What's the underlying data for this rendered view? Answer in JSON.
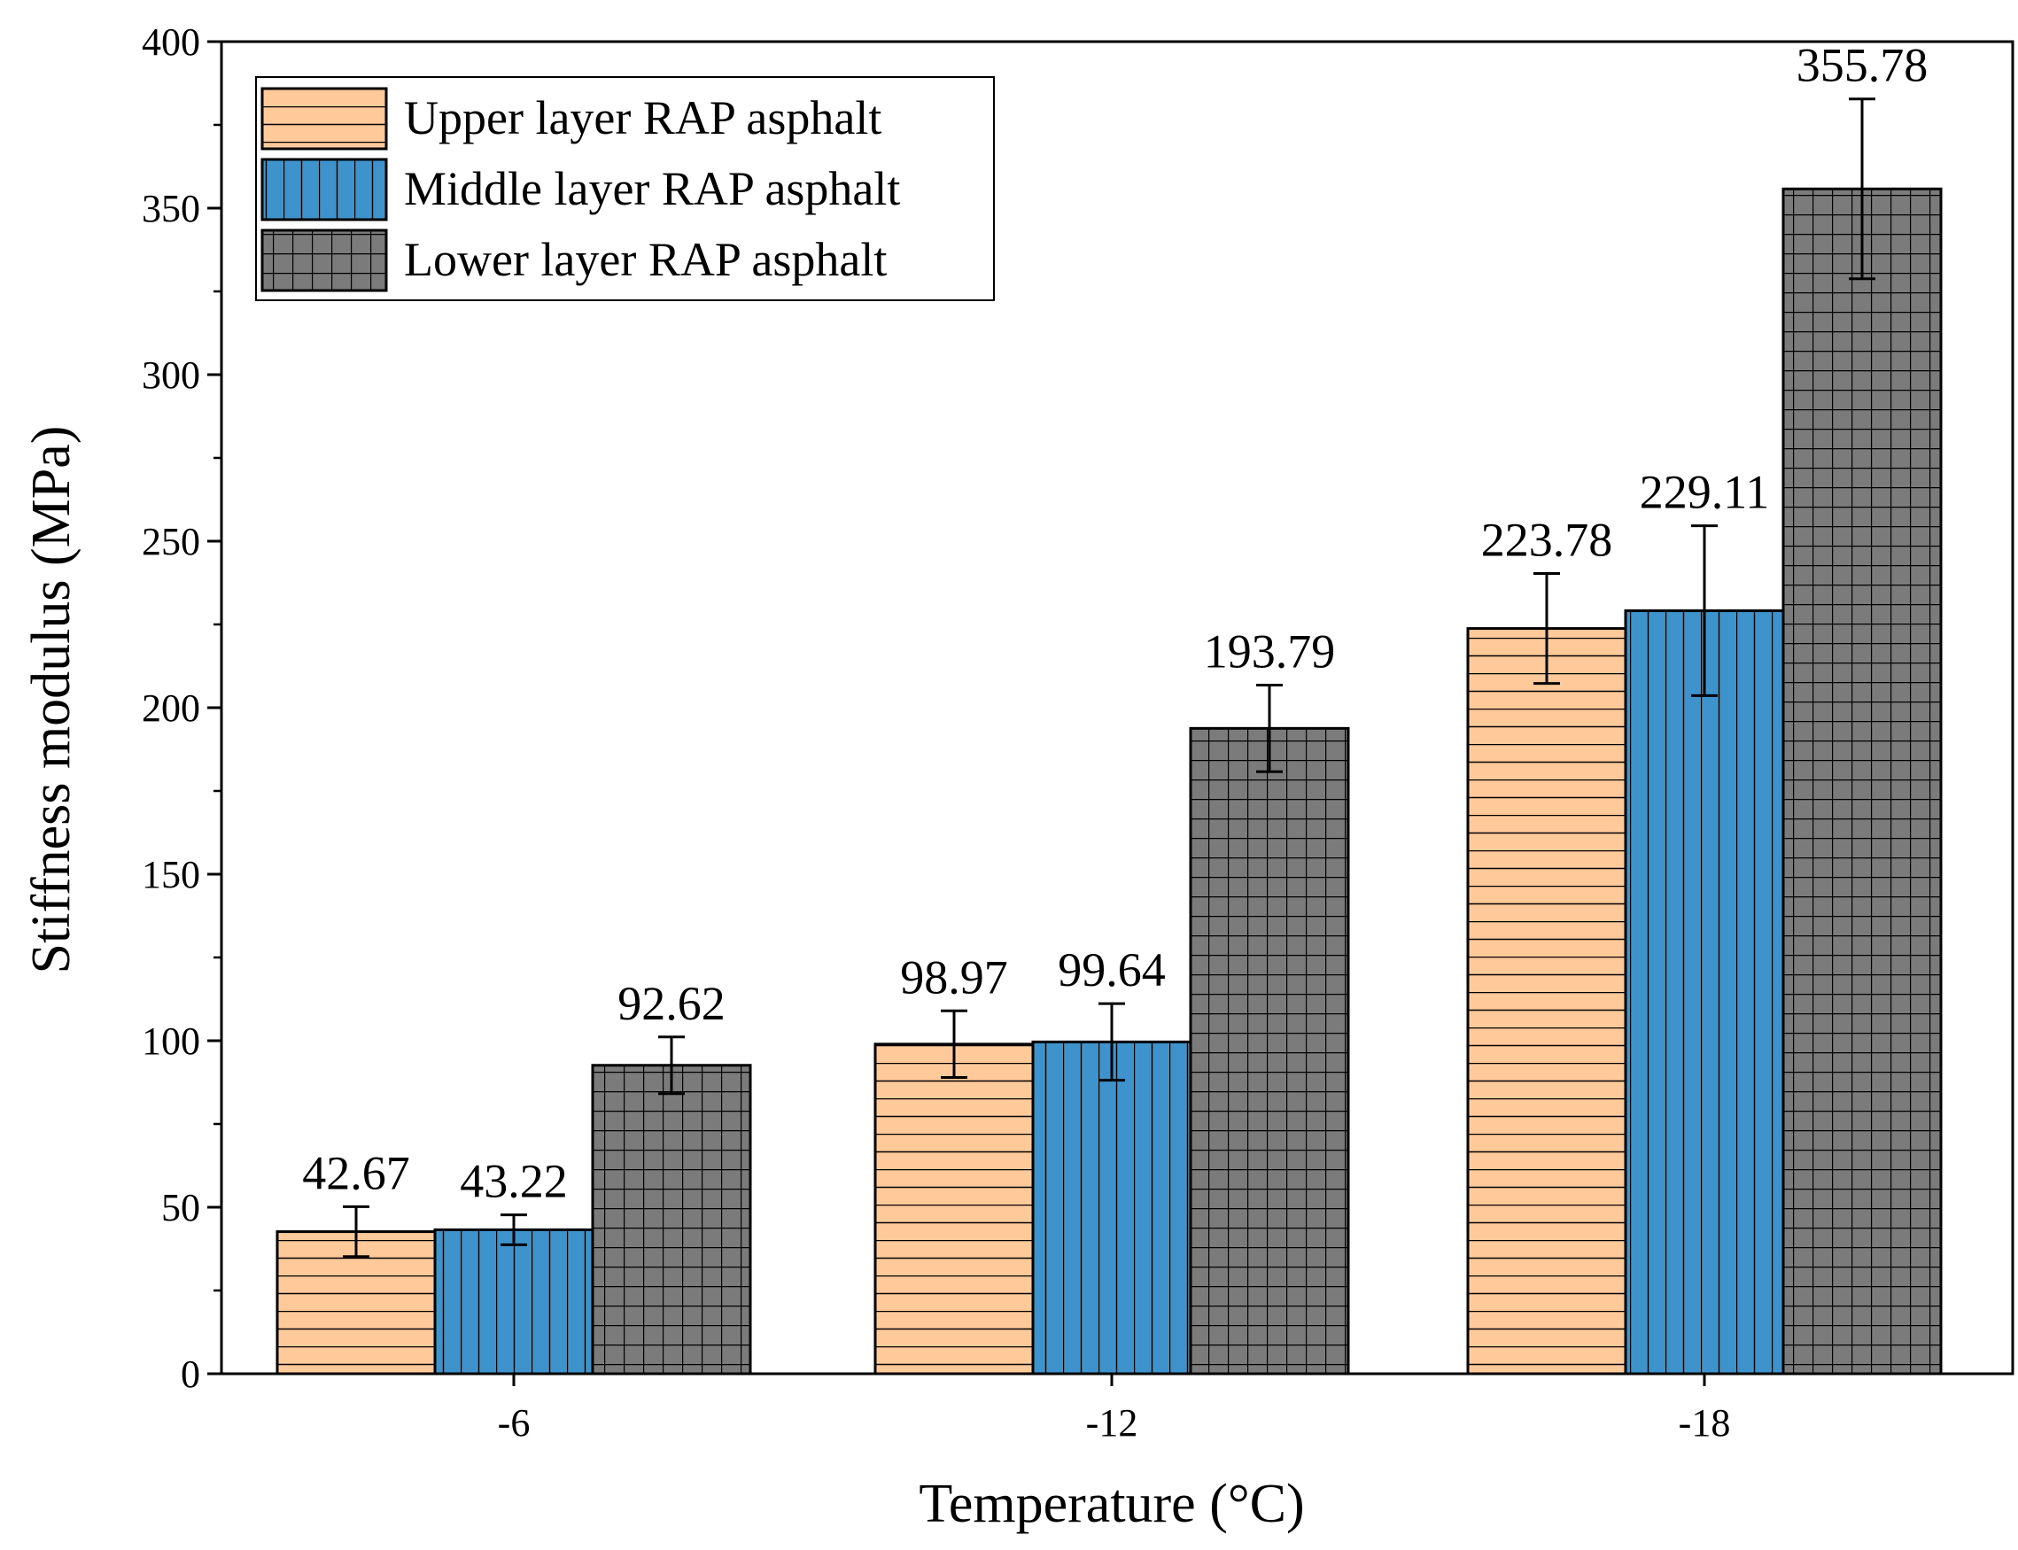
{
  "chart_data": {
    "type": "bar",
    "title": "",
    "xlabel": "Temperature (°C)",
    "ylabel": "Stiffness modulus (MPa)",
    "categories": [
      "-6",
      "-12",
      "-18"
    ],
    "ylim": [
      0,
      400
    ],
    "yticks": [
      0,
      50,
      100,
      150,
      200,
      250,
      300,
      350,
      400
    ],
    "legend_position": "top-left",
    "grid": false,
    "series": [
      {
        "name": "Upper layer RAP asphalt",
        "color": "#FFC99A",
        "pattern": "horizontal-lines",
        "values": [
          42.67,
          98.97,
          223.78
        ],
        "errors": [
          7.5,
          10,
          16.5
        ],
        "labels": [
          "42.67",
          "98.97",
          "223.78"
        ]
      },
      {
        "name": "Middle layer RAP asphalt",
        "color": "#3E93CD",
        "pattern": "vertical-lines",
        "values": [
          43.22,
          99.64,
          229.11
        ],
        "errors": [
          4.5,
          11.5,
          25.5
        ],
        "labels": [
          "43.22",
          "99.64",
          "229.11"
        ]
      },
      {
        "name": "Lower layer RAP asphalt",
        "color": "#7B7B7B",
        "pattern": "grid",
        "values": [
          92.62,
          193.79,
          355.78
        ],
        "errors": [
          8.5,
          13,
          27
        ],
        "labels": [
          "92.62",
          "193.79",
          "355.78"
        ]
      }
    ]
  }
}
